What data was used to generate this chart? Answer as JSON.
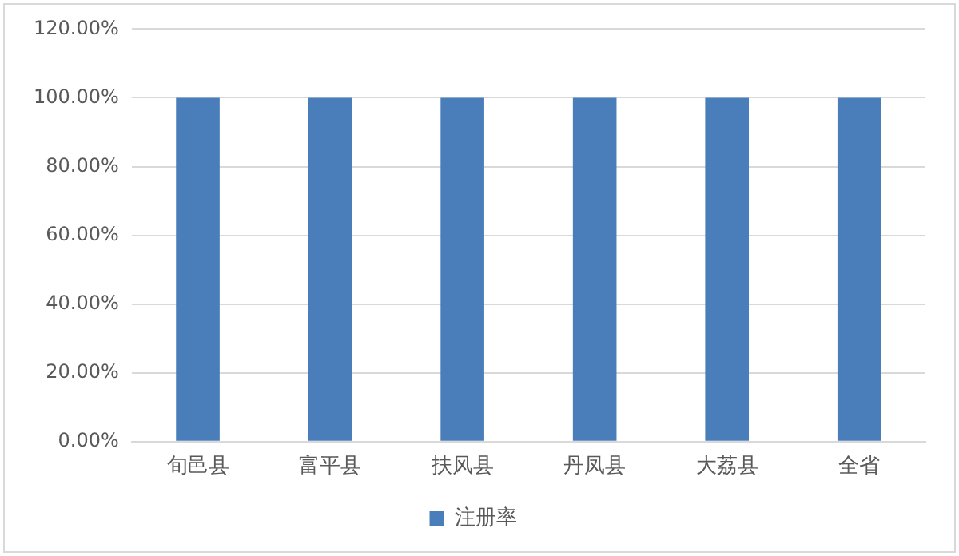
{
  "chart_data": {
    "type": "bar",
    "categories": [
      "旬邑县",
      "富平县",
      "扶风县",
      "丹凤县",
      "大荔县",
      "全省"
    ],
    "series": [
      {
        "name": "注册率",
        "color": "#4a7ebb",
        "values": [
          100,
          100,
          100,
          100,
          100,
          100
        ]
      }
    ],
    "ylim": [
      0,
      120
    ],
    "yticks": [
      {
        "value": 0,
        "label": "0.00%"
      },
      {
        "value": 20,
        "label": "20.00%"
      },
      {
        "value": 40,
        "label": "40.00%"
      },
      {
        "value": 60,
        "label": "60.00%"
      },
      {
        "value": 80,
        "label": "80.00%"
      },
      {
        "value": 100,
        "label": "100.00%"
      },
      {
        "value": 120,
        "label": "120.00%"
      }
    ],
    "grid": "y",
    "legend": "bottom"
  }
}
